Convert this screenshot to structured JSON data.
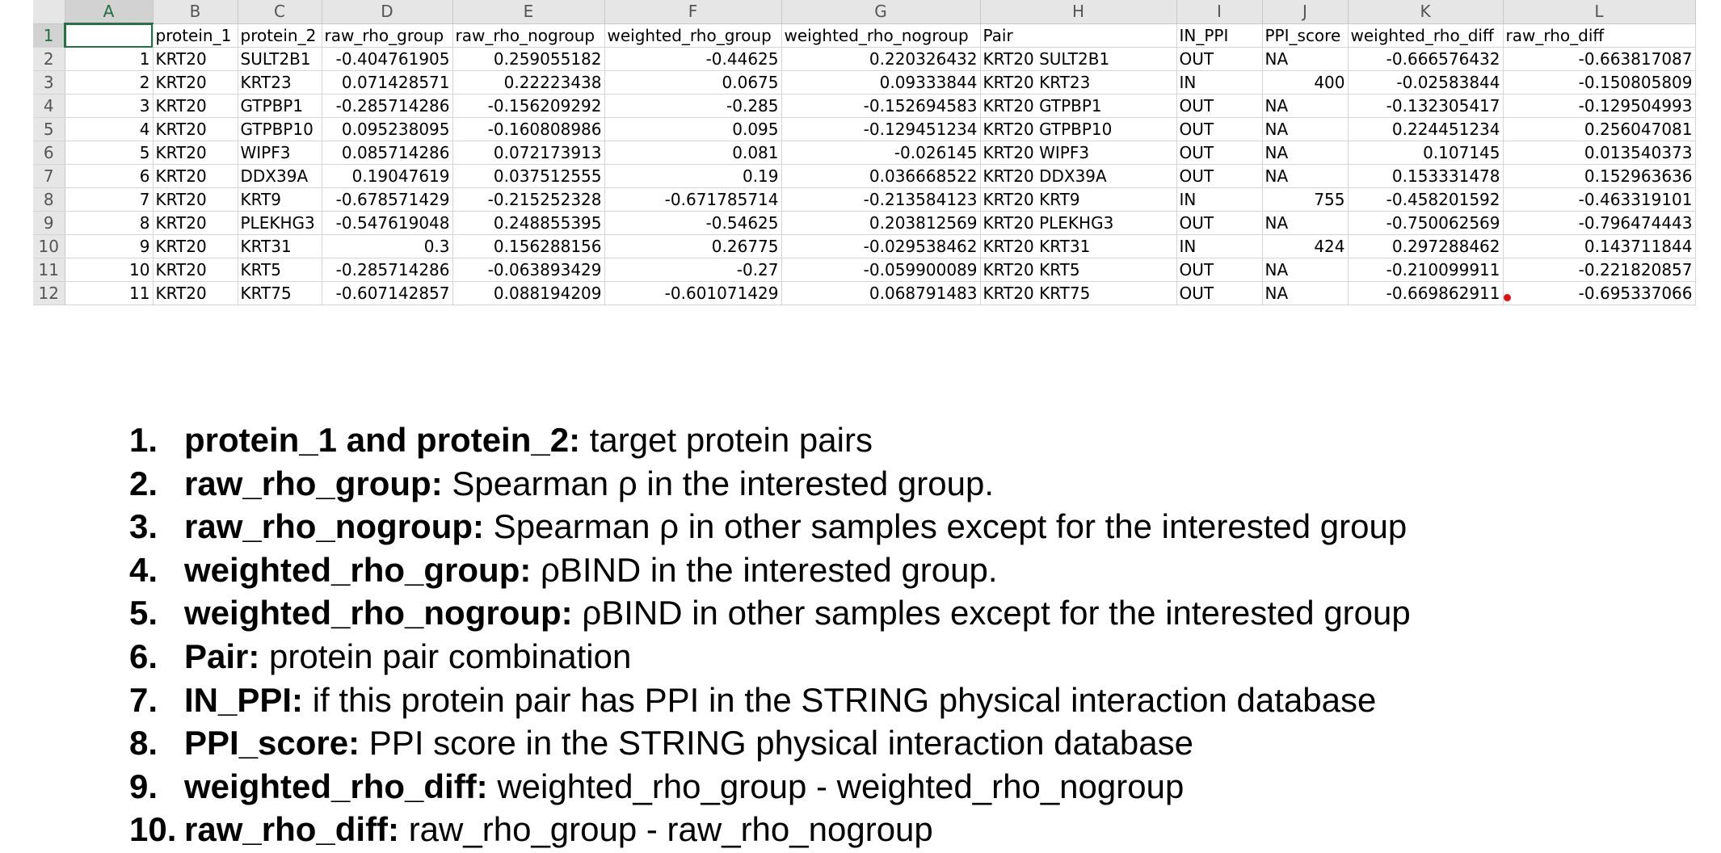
{
  "spreadsheet": {
    "column_letters": [
      "A",
      "B",
      "C",
      "D",
      "E",
      "F",
      "G",
      "H",
      "I",
      "J",
      "K",
      "L"
    ],
    "header_row": [
      "",
      "protein_1",
      "protein_2",
      "raw_rho_group",
      "raw_rho_nogroup",
      "weighted_rho_group",
      "weighted_rho_nogroup",
      "Pair",
      "IN_PPI",
      "PPI_score",
      "weighted_rho_diff",
      "raw_rho_diff"
    ],
    "rows": [
      [
        "1",
        "KRT20",
        "SULT2B1",
        "-0.404761905",
        "0.259055182",
        "-0.44625",
        "0.220326432",
        "KRT20 SULT2B1",
        "OUT",
        "NA",
        "-0.666576432",
        "-0.663817087"
      ],
      [
        "2",
        "KRT20",
        "KRT23",
        "0.071428571",
        "0.22223438",
        "0.0675",
        "0.09333844",
        "KRT20 KRT23",
        "IN",
        "400",
        "-0.02583844",
        "-0.150805809"
      ],
      [
        "3",
        "KRT20",
        "GTPBP1",
        "-0.285714286",
        "-0.156209292",
        "-0.285",
        "-0.152694583",
        "KRT20 GTPBP1",
        "OUT",
        "NA",
        "-0.132305417",
        "-0.129504993"
      ],
      [
        "4",
        "KRT20",
        "GTPBP10",
        "0.095238095",
        "-0.160808986",
        "0.095",
        "-0.129451234",
        "KRT20 GTPBP10",
        "OUT",
        "NA",
        "0.224451234",
        "0.256047081"
      ],
      [
        "5",
        "KRT20",
        "WIPF3",
        "0.085714286",
        "0.072173913",
        "0.081",
        "-0.026145",
        "KRT20 WIPF3",
        "OUT",
        "NA",
        "0.107145",
        "0.013540373"
      ],
      [
        "6",
        "KRT20",
        "DDX39A",
        "0.19047619",
        "0.037512555",
        "0.19",
        "0.036668522",
        "KRT20 DDX39A",
        "OUT",
        "NA",
        "0.153331478",
        "0.152963636"
      ],
      [
        "7",
        "KRT20",
        "KRT9",
        "-0.678571429",
        "-0.215252328",
        "-0.671785714",
        "-0.213584123",
        "KRT20 KRT9",
        "IN",
        "755",
        "-0.458201592",
        "-0.463319101"
      ],
      [
        "8",
        "KRT20",
        "PLEKHG3",
        "-0.547619048",
        "0.248855395",
        "-0.54625",
        "0.203812569",
        "KRT20 PLEKHG3",
        "OUT",
        "NA",
        "-0.750062569",
        "-0.796474443"
      ],
      [
        "9",
        "KRT20",
        "KRT31",
        "0.3",
        "0.156288156",
        "0.26775",
        "-0.029538462",
        "KRT20 KRT31",
        "IN",
        "424",
        "0.297288462",
        "0.143711844"
      ],
      [
        "10",
        "KRT20",
        "KRT5",
        "-0.285714286",
        "-0.063893429",
        "-0.27",
        "-0.059900089",
        "KRT20 KRT5",
        "OUT",
        "NA",
        "-0.210099911",
        "-0.221820857"
      ],
      [
        "11",
        "KRT20",
        "KRT75",
        "-0.607142857",
        "0.088194209",
        "-0.601071429",
        "0.068791483",
        "KRT20 KRT75",
        "OUT",
        "NA",
        "-0.669862911",
        "-0.695337066"
      ]
    ]
  },
  "legend": [
    {
      "num": "1.",
      "term": "protein_1 and protein_2:",
      "desc": " target protein pairs"
    },
    {
      "num": "2.",
      "term": "raw_rho_group:",
      "desc": " Spearman ρ in the interested group."
    },
    {
      "num": "3.",
      "term": "raw_rho_nogroup:",
      "desc": " Spearman ρ in other samples except for the interested group"
    },
    {
      "num": "4.",
      "term": "weighted_rho_group:",
      "desc": " ρBIND in the interested group."
    },
    {
      "num": "5.",
      "term": "weighted_rho_nogroup:",
      "desc": " ρBIND in other samples except for the interested group"
    },
    {
      "num": "6.",
      "term": "Pair:",
      "desc": " protein pair combination"
    },
    {
      "num": "7.",
      "term": "IN_PPI:",
      "desc": " if this protein pair has PPI in the STRING physical interaction database"
    },
    {
      "num": "8.",
      "term": "PPI_score:",
      "desc": " PPI score in the STRING physical interaction database"
    },
    {
      "num": "9.",
      "term": "weighted_rho_diff:",
      "desc": " weighted_rho_group - weighted_rho_nogroup"
    },
    {
      "num": "10.",
      "term": "raw_rho_diff:",
      "desc": " raw_rho_group - raw_rho_nogroup"
    }
  ]
}
